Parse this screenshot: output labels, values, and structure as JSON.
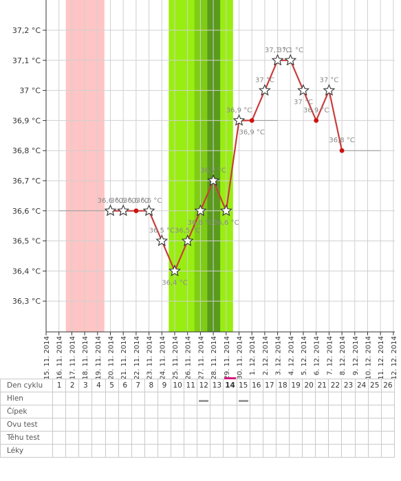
{
  "chart_data": {
    "type": "line",
    "y_unit": "°C",
    "ylim": [
      36.2,
      37.3
    ],
    "y_ticks": [
      {
        "value": 36.3,
        "label": "36,3 °C"
      },
      {
        "value": 36.4,
        "label": "36,4 °C"
      },
      {
        "value": 36.5,
        "label": "36,5 °C"
      },
      {
        "value": 36.6,
        "label": "36,6 °C"
      },
      {
        "value": 36.7,
        "label": "36,7 °C"
      },
      {
        "value": 36.8,
        "label": "36,8 °C"
      },
      {
        "value": 36.9,
        "label": "36,9 °C"
      },
      {
        "value": 37.0,
        "label": "37 °C"
      },
      {
        "value": 37.1,
        "label": "37,1 °C"
      },
      {
        "value": 37.2,
        "label": "37,2 °C"
      }
    ],
    "x_dates": [
      "15. 11. 2014",
      "16. 11. 2014",
      "17. 11. 2014",
      "18. 11. 2014",
      "19. 11. 2014",
      "20. 11. 2014",
      "21. 11. 2014",
      "22. 11. 2014",
      "23. 11. 2014",
      "24. 11. 2014",
      "25. 11. 2014",
      "26. 11. 2014",
      "27. 11. 2014",
      "28. 11. 2014",
      "29. 11. 2014",
      "30. 11. 2014",
      "1. 12. 2014",
      "2. 12. 2014",
      "3. 12. 2014",
      "4. 12. 2014",
      "5. 12. 2014",
      "6. 12. 2014",
      "7. 12. 2014",
      "8. 12. 2014",
      "9. 12. 2014",
      "10. 12. 2014",
      "11. 12. 2014",
      "12. 12. 2014"
    ],
    "bands": [
      {
        "from": "16. 11. 2014",
        "to": "19. 11. 2014",
        "color": "#ffc4c4"
      },
      {
        "from": "24. 11. 2014",
        "to": "29. 11. 2014",
        "color": "#99ee11"
      },
      {
        "from": "26. 11. 2014",
        "to": "28. 11. 2014",
        "color": "#7fcc16"
      },
      {
        "from": "27. 11. 2014",
        "to": "28. 11. 2014",
        "color": "#5a9a1e"
      }
    ],
    "series": [
      {
        "color": "#c83c3c",
        "points": [
          {
            "date": "20. 11. 2014",
            "value": 36.6,
            "label": "36,6 °C",
            "marker": "star"
          },
          {
            "date": "21. 11. 2014",
            "value": 36.6,
            "label": "36,6 °C",
            "marker": "star"
          },
          {
            "date": "22. 11. 2014",
            "value": 36.6,
            "label": "36,6 °C",
            "marker": "dot"
          },
          {
            "date": "23. 11. 2014",
            "value": 36.6,
            "label": "36,6 °C",
            "marker": "star"
          },
          {
            "date": "24. 11. 2014",
            "value": 36.5,
            "label": "36,5 °C",
            "marker": "star"
          },
          {
            "date": "25. 11. 2014",
            "value": 36.4,
            "label": "36,4 °C",
            "marker": "star"
          },
          {
            "date": "26. 11. 2014",
            "value": 36.5,
            "label": "36,5 °C",
            "marker": "star"
          },
          {
            "date": "27. 11. 2014",
            "value": 36.6,
            "label": "36,6 °C",
            "marker": "star"
          },
          {
            "date": "28. 11. 2014",
            "value": 36.7,
            "label": "36,7 °C",
            "marker": "star"
          },
          {
            "date": "29. 11. 2014",
            "value": 36.6,
            "label": "36,6 °C",
            "marker": "star"
          },
          {
            "date": "30. 11. 2014",
            "value": 36.9,
            "label": "36,9 °C",
            "marker": "star"
          },
          {
            "date": "1. 12. 2014",
            "value": 36.9,
            "label": "36,9 °C",
            "marker": "dot"
          },
          {
            "date": "2. 12. 2014",
            "value": 37.0,
            "label": "37 °C",
            "marker": "star"
          },
          {
            "date": "3. 12. 2014",
            "value": 37.1,
            "label": "37,1 °C",
            "marker": "star"
          },
          {
            "date": "4. 12. 2014",
            "value": 37.1,
            "label": "37,1 °C",
            "marker": "star"
          },
          {
            "date": "5. 12. 2014",
            "value": 37.0,
            "label": "37 °C",
            "marker": "star"
          },
          {
            "date": "6. 12. 2014",
            "value": 36.9,
            "label": "36,9 °C",
            "marker": "dot"
          },
          {
            "date": "7. 12. 2014",
            "value": 37.0,
            "label": "37 °C",
            "marker": "star"
          },
          {
            "date": "8. 12. 2014",
            "value": 36.8,
            "label": "36,8 °C",
            "marker": "dot"
          }
        ]
      }
    ],
    "reference_lines": [
      {
        "value": 36.6,
        "from": "16. 11. 2014",
        "to": "20. 11. 2014"
      },
      {
        "value": 36.9,
        "from": "1. 12. 2014",
        "to": "3. 12. 2014"
      },
      {
        "value": 36.8,
        "from": "8. 12. 2014",
        "to": "11. 12. 2014"
      }
    ],
    "grid": true
  },
  "table": {
    "rows": [
      "Den cyklu",
      "Hlen",
      "Čípek",
      "Ovu test",
      "Těhu test",
      "Léky"
    ],
    "cycle_days": [
      "1",
      "2",
      "3",
      "4",
      "5",
      "6",
      "7",
      "8",
      "9",
      "10",
      "11",
      "12",
      "13",
      "14",
      "15",
      "16",
      "17",
      "18",
      "19",
      "20",
      "21",
      "22",
      "23",
      "24",
      "25",
      "26"
    ],
    "current_day": "14",
    "hlen_marked_days": [
      "12",
      "15"
    ]
  }
}
